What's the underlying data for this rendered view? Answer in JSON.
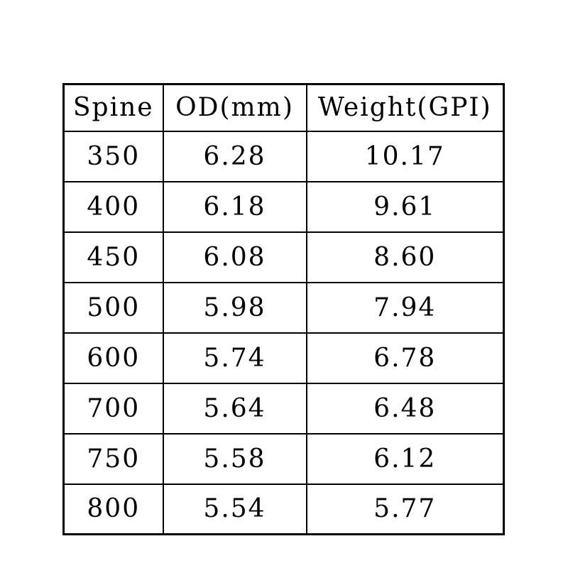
{
  "page": {
    "background": "#ffffff",
    "border_color": "#000000",
    "text_color": "#000000"
  },
  "table": {
    "headers": [
      "Spine",
      "OD(mm)",
      "Weight(GPI)"
    ],
    "rows": [
      [
        "350",
        "6.28",
        "10.17"
      ],
      [
        "400",
        "6.18",
        "9.61"
      ],
      [
        "450",
        "6.08",
        "8.60"
      ],
      [
        "500",
        "5.98",
        "7.94"
      ],
      [
        "600",
        "5.74",
        "6.78"
      ],
      [
        "700",
        "5.64",
        "6.48"
      ],
      [
        "750",
        "5.58",
        "6.12"
      ],
      [
        "800",
        "5.54",
        "5.77"
      ]
    ]
  },
  "chart_data": {
    "type": "table",
    "title": "",
    "columns": [
      "Spine",
      "OD(mm)",
      "Weight(GPI)"
    ],
    "rows": [
      [
        350,
        6.28,
        10.17
      ],
      [
        400,
        6.18,
        9.61
      ],
      [
        450,
        6.08,
        8.6
      ],
      [
        500,
        5.98,
        7.94
      ],
      [
        600,
        5.74,
        6.78
      ],
      [
        700,
        5.64,
        6.48
      ],
      [
        750,
        5.58,
        6.12
      ],
      [
        800,
        5.54,
        5.77
      ]
    ]
  }
}
